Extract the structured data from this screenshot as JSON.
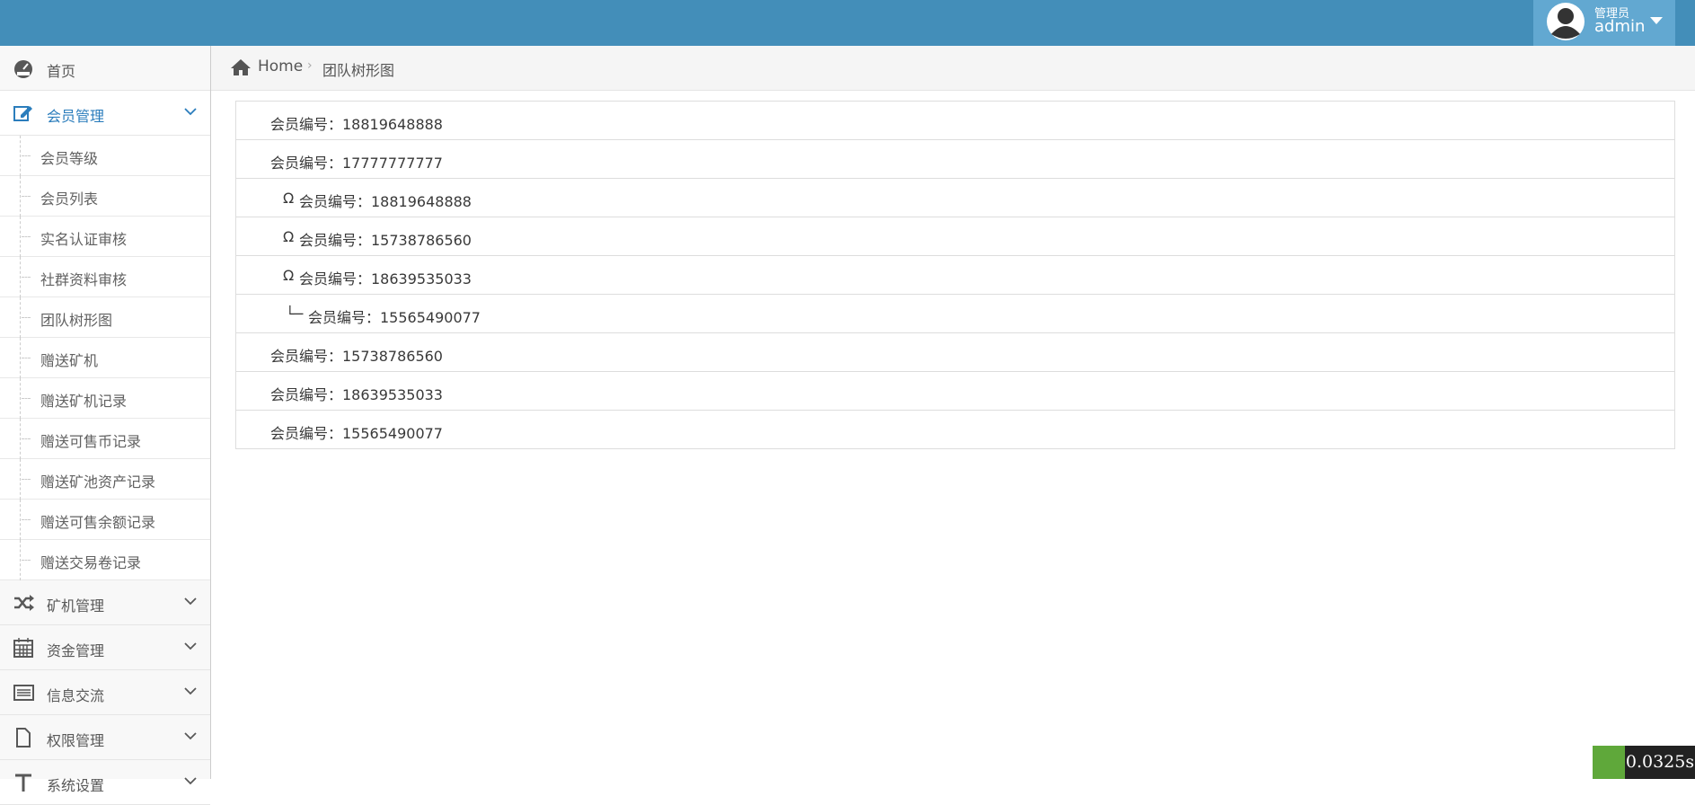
{
  "topbar": {
    "role": "管理员",
    "user": "admin"
  },
  "sidebar": [
    {
      "label": "首页",
      "icon": "dashboard"
    },
    {
      "label": "会员管理",
      "icon": "edit",
      "open": true,
      "children": [
        "会员等级",
        "会员列表",
        "实名认证审核",
        "社群资料审核",
        "团队树形图",
        "赠送矿机",
        "赠送矿机记录",
        "赠送可售币记录",
        "赠送矿池资产记录",
        "赠送可售余额记录",
        "赠送交易卷记录"
      ]
    },
    {
      "label": "矿机管理",
      "icon": "random",
      "children": []
    },
    {
      "label": "资金管理",
      "icon": "calendar",
      "children": []
    },
    {
      "label": "信息交流",
      "icon": "list",
      "children": []
    },
    {
      "label": "权限管理",
      "icon": "file",
      "children": []
    },
    {
      "label": "系统设置",
      "icon": "text",
      "children": []
    }
  ],
  "breadcrumb": {
    "home": "Home",
    "current": "团队树形图"
  },
  "tree": [
    {
      "text": "会员编号：18819648888"
    },
    {
      "text": "会员编号：17777777777"
    },
    {
      "prefix": "Ω",
      "text": "会员编号：18819648888"
    },
    {
      "prefix": "Ω",
      "text": "会员编号：15738786560"
    },
    {
      "prefix": "Ω",
      "text": "会员编号：18639535033"
    },
    {
      "prefix": "└─",
      "text": "会员编号：15565490077"
    },
    {
      "text": "会员编号：15738786560"
    },
    {
      "text": "会员编号：18639535033"
    },
    {
      "text": "会员编号：15565490077"
    }
  ],
  "timer": "0.0325s"
}
